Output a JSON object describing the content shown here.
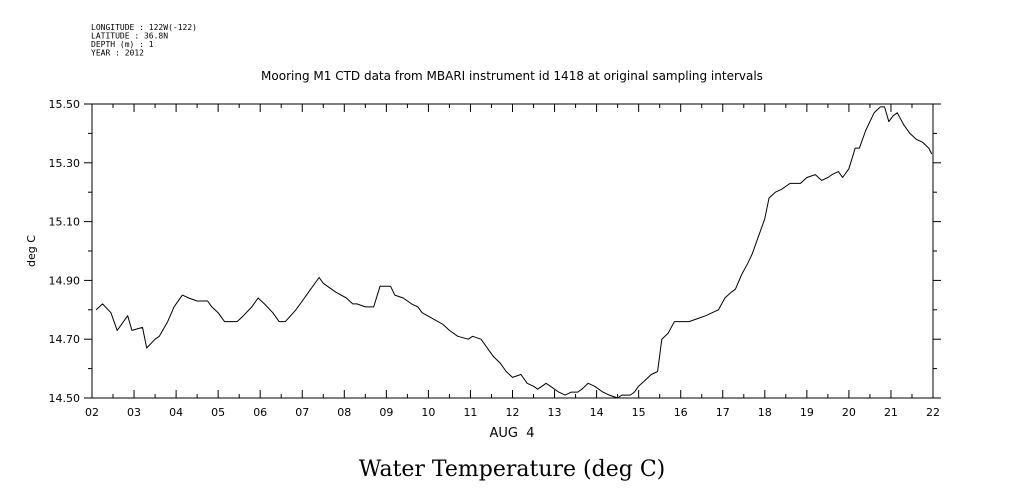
{
  "header": {
    "lines": [
      "LONGITUDE : 122W(-122)",
      "LATITUDE : 36.8N",
      "DEPTH (m) : 1",
      "YEAR : 2012"
    ]
  },
  "chart_data": {
    "type": "line",
    "title": "Mooring M1 CTD data from MBARI instrument id 1418 at original sampling intervals",
    "xlabel": "AUG  4",
    "ylabel": "deg C",
    "bottom_label": "Water Temperature (deg C)",
    "xlim": [
      2,
      22
    ],
    "ylim": [
      14.5,
      15.5
    ],
    "x_ticks": [
      "02",
      "03",
      "04",
      "05",
      "06",
      "07",
      "08",
      "09",
      "10",
      "11",
      "12",
      "13",
      "14",
      "15",
      "16",
      "17",
      "18",
      "19",
      "20",
      "21",
      "22"
    ],
    "y_ticks": [
      "14.50",
      "14.70",
      "14.90",
      "15.10",
      "15.30",
      "15.50"
    ],
    "grid": false,
    "series": [
      {
        "x": [
          2.1,
          2.25,
          2.45,
          2.6,
          2.85,
          2.95,
          3.2,
          3.3,
          3.5,
          3.6,
          3.8,
          3.95,
          4.15,
          4.3,
          4.5,
          4.75,
          4.85,
          5.0,
          5.15,
          5.3,
          5.45,
          5.6,
          5.8,
          5.95,
          6.1,
          6.3,
          6.45,
          6.6,
          6.85,
          7.0,
          7.2,
          7.4,
          7.5,
          7.6,
          7.8,
          8.05,
          8.2,
          8.3,
          8.5,
          8.7,
          8.85,
          8.9,
          9.1,
          9.2,
          9.4,
          9.6,
          9.75,
          9.85,
          10.1,
          10.35,
          10.5,
          10.7,
          10.95,
          11.05,
          11.25,
          11.35,
          11.55,
          11.7,
          11.85,
          12.0,
          12.2,
          12.35,
          12.5,
          12.6,
          12.8,
          12.9,
          13.1,
          13.25,
          13.4,
          13.55,
          13.65,
          13.8,
          13.95,
          14.15,
          14.3,
          14.5,
          14.6,
          14.8,
          14.9,
          15.0,
          15.15,
          15.3,
          15.45,
          15.55,
          15.7,
          15.85,
          16.1,
          16.2,
          16.4,
          16.6,
          16.75,
          16.9,
          17.05,
          17.2,
          17.3,
          17.45,
          17.6,
          17.7,
          17.85,
          18.0,
          18.1,
          18.25,
          18.4,
          18.6,
          18.75,
          18.85,
          19.0,
          19.2,
          19.35,
          19.5,
          19.6,
          19.75,
          19.85,
          20.0,
          20.15,
          20.25,
          20.4,
          20.6,
          20.75,
          20.85,
          20.95,
          21.05,
          21.15,
          21.3,
          21.45,
          21.6,
          21.75,
          21.9,
          21.97
        ],
        "y": [
          14.8,
          14.82,
          14.79,
          14.73,
          14.78,
          14.73,
          14.74,
          14.67,
          14.7,
          14.71,
          14.76,
          14.81,
          14.85,
          14.84,
          14.83,
          14.83,
          14.81,
          14.79,
          14.76,
          14.76,
          14.76,
          14.78,
          14.81,
          14.84,
          14.82,
          14.79,
          14.76,
          14.76,
          14.8,
          14.83,
          14.87,
          14.91,
          14.89,
          14.88,
          14.86,
          14.84,
          14.82,
          14.82,
          14.81,
          14.81,
          14.88,
          14.88,
          14.88,
          14.85,
          14.84,
          14.82,
          14.81,
          14.79,
          14.77,
          14.75,
          14.73,
          14.71,
          14.7,
          14.71,
          14.7,
          14.68,
          14.64,
          14.62,
          14.59,
          14.57,
          14.58,
          14.55,
          14.54,
          14.53,
          14.55,
          14.54,
          14.52,
          14.51,
          14.52,
          14.52,
          14.53,
          14.55,
          14.54,
          14.52,
          14.51,
          14.5,
          14.51,
          14.51,
          14.52,
          14.54,
          14.56,
          14.58,
          14.59,
          14.7,
          14.72,
          14.76,
          14.76,
          14.76,
          14.77,
          14.78,
          14.79,
          14.8,
          14.84,
          14.86,
          14.87,
          14.92,
          14.96,
          14.99,
          15.05,
          15.11,
          15.18,
          15.2,
          15.21,
          15.23,
          15.23,
          15.23,
          15.25,
          15.26,
          15.24,
          15.25,
          15.26,
          15.27,
          15.25,
          15.28,
          15.35,
          15.35,
          15.41,
          15.47,
          15.49,
          15.49,
          15.44,
          15.46,
          15.47,
          15.43,
          15.4,
          15.38,
          15.37,
          15.35,
          15.33
        ]
      }
    ]
  }
}
